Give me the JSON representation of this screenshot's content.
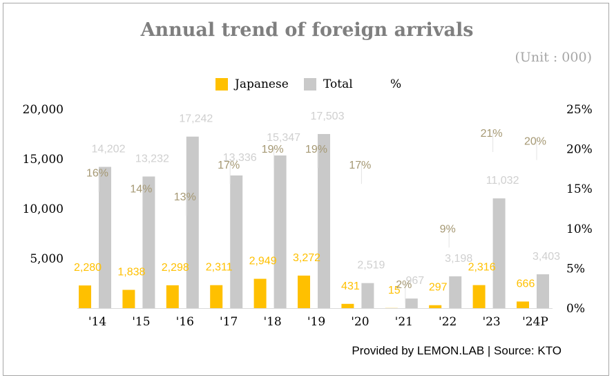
{
  "chart_data": {
    "type": "bar",
    "title": "Annual trend of foreign arrivals",
    "unit_note": "(Unit : 000)",
    "source": "Provided by LEMON.LAB | Source: KTO",
    "categories": [
      "'14",
      "'15",
      "'16",
      "'17",
      "'18",
      "'19",
      "'20",
      "'21",
      "'22",
      "'23",
      "'24P"
    ],
    "series": [
      {
        "name": "Japanese",
        "color": "#ffc000",
        "axis": "left",
        "values": [
          2280,
          1838,
          2298,
          2311,
          2949,
          3272,
          431,
          15,
          297,
          2316,
          666
        ],
        "labels": [
          "2,280",
          "1,838",
          "2,298",
          "2,311",
          "2,949",
          "3,272",
          "431",
          "15",
          "297",
          "2,316",
          "666"
        ]
      },
      {
        "name": "Total",
        "color": "#c9c9c9",
        "axis": "left",
        "values": [
          14202,
          13232,
          17242,
          13336,
          15347,
          17503,
          2519,
          967,
          3198,
          11032,
          3403
        ],
        "labels": [
          "14,202",
          "13,232",
          "17,242",
          "13,336",
          "15,347",
          "17,503",
          "2,519",
          "967",
          "3,198",
          "11,032",
          "3,403"
        ]
      },
      {
        "name": "%",
        "color": "#a59873",
        "axis": "right",
        "values": [
          16,
          14,
          13,
          17,
          19,
          19,
          17,
          2,
          9,
          21,
          20
        ],
        "labels": [
          "16%",
          "14%",
          "13%",
          "17%",
          "19%",
          "19%",
          "17%",
          "2%",
          "9%",
          "21%",
          "20%"
        ]
      }
    ],
    "y_left": {
      "min": 0,
      "max": 20000,
      "ticks": [
        5000,
        10000,
        15000,
        20000
      ],
      "tick_labels": [
        "5,000",
        "10,000",
        "15,000",
        "20,000"
      ]
    },
    "y_right": {
      "min": 0,
      "max": 25,
      "ticks": [
        0,
        5,
        10,
        15,
        20,
        25
      ],
      "tick_labels": [
        "0%",
        "5%",
        "10%",
        "15%",
        "20%",
        "25%"
      ]
    },
    "legend_position": "top-center"
  }
}
